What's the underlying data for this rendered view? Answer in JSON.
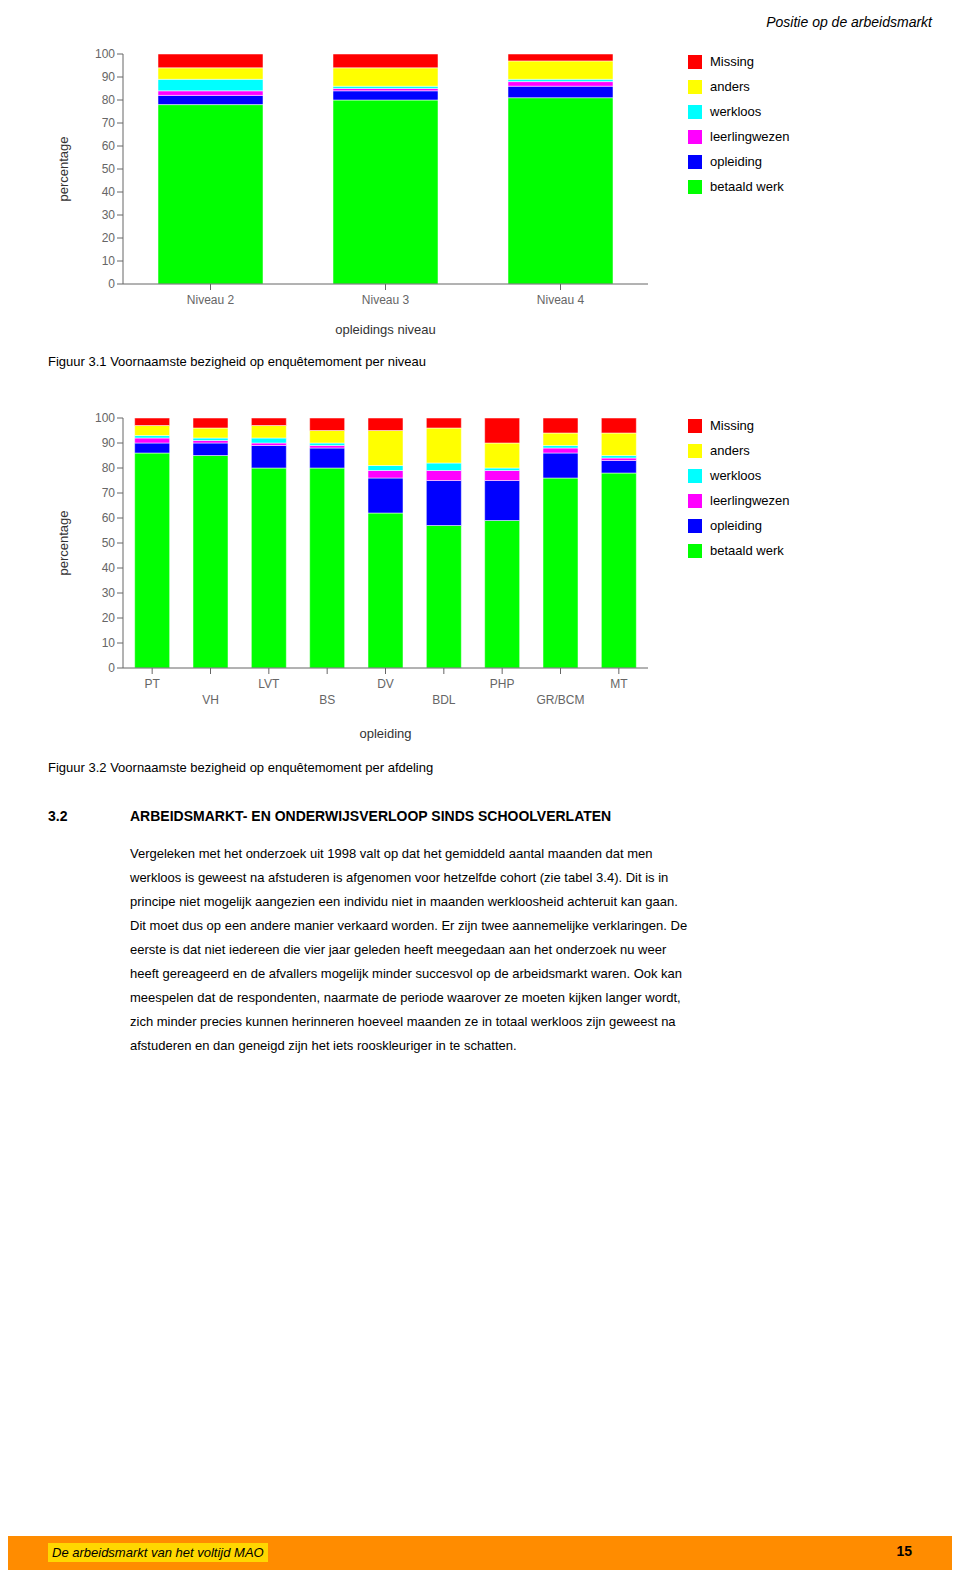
{
  "page_title": "Positie op de arbeidsmarkt",
  "section_number": "3.2",
  "section_title": "ARBEIDSMARKT- EN ONDERWIJSVERLOOP SINDS SCHOOLVERLATEN",
  "body_lines": [
    "Vergeleken met het onderzoek uit 1998 valt op dat het gemiddeld aantal maanden dat men",
    "werkloos is geweest na afstuderen is afgenomen voor hetzelfde cohort (zie tabel 3.4). Dit is in",
    "principe niet mogelijk aangezien een individu niet in maanden werkloosheid achteruit kan gaan.",
    "Dit moet dus op een andere manier verkaard worden. Er zijn twee aannemelijke verklaringen. De",
    "eerste is dat niet iedereen die vier jaar geleden heeft meegedaan aan het onderzoek nu weer",
    "heeft gereageerd en de afvallers mogelijk minder succesvol op de arbeidsmarkt waren. Ook kan",
    "meespelen dat de respondenten, naarmate de periode waarover ze moeten kijken langer wordt,",
    "zich minder precies kunnen herinneren hoeveel maanden ze in totaal werkloos zijn geweest na",
    "afstuderen en dan geneigd zijn het iets rooskleuriger in te schatten."
  ],
  "footer_text": "De arbeidsmarkt van het voltijd MAO",
  "page_number": "15",
  "footer_color": "#FF8C00",
  "footer_highlight": "#FFD700",
  "chart_data": [
    {
      "type": "bar",
      "stacked": true,
      "title": "Figuur 3.1   Voornaamste bezigheid op enquêtemoment per niveau",
      "xlabel": "opleidings niveau",
      "ylabel": "percentage",
      "categories": [
        "Niveau 2",
        "Niveau 3",
        "Niveau 4"
      ],
      "series": [
        {
          "name": "Missing",
          "color": "#FF0000",
          "values": [
            6,
            6,
            3
          ]
        },
        {
          "name": "anders",
          "color": "#FFFF00",
          "values": [
            5,
            8,
            8
          ]
        },
        {
          "name": "werkloos",
          "color": "#00FFFF",
          "values": [
            5,
            1,
            1
          ]
        },
        {
          "name": "leerlingwezen",
          "color": "#FF00FF",
          "values": [
            2,
            1,
            2
          ]
        },
        {
          "name": "opleiding",
          "color": "#0000FF",
          "values": [
            4,
            4,
            5
          ]
        },
        {
          "name": "betaald werk",
          "color": "#00FF00",
          "values": [
            78,
            80,
            81
          ]
        }
      ],
      "ylim": [
        0,
        100
      ],
      "yticks": [
        0,
        10,
        20,
        30,
        40,
        50,
        60,
        70,
        80,
        90,
        100
      ],
      "grid": false,
      "legend": "right"
    },
    {
      "type": "bar",
      "stacked": true,
      "title": "Figuur 3.2   Voornaamste bezigheid op enquêtemoment per afdeling",
      "xlabel": "opleiding",
      "ylabel": "percentage",
      "categories": [
        "PT",
        "VH",
        "LVT",
        "BS",
        "DV",
        "BDL",
        "PHP",
        "GR/BCM",
        "MT"
      ],
      "series": [
        {
          "name": "Missing",
          "color": "#FF0000",
          "values": [
            3,
            4,
            3,
            5,
            5,
            4,
            10,
            6,
            6
          ]
        },
        {
          "name": "anders",
          "color": "#FFFF00",
          "values": [
            4,
            4,
            5,
            5,
            14,
            14,
            10,
            5,
            9
          ]
        },
        {
          "name": "werkloos",
          "color": "#00FFFF",
          "values": [
            1,
            1,
            2,
            1,
            2,
            3,
            1,
            1,
            1
          ]
        },
        {
          "name": "leerlingwezen",
          "color": "#FF00FF",
          "values": [
            2,
            1,
            1,
            1,
            3,
            4,
            4,
            2,
            1
          ]
        },
        {
          "name": "opleiding",
          "color": "#0000FF",
          "values": [
            4,
            5,
            9,
            8,
            14,
            18,
            16,
            10,
            5
          ]
        },
        {
          "name": "betaald werk",
          "color": "#00FF00",
          "values": [
            86,
            85,
            80,
            80,
            62,
            57,
            59,
            76,
            78
          ]
        }
      ],
      "ylim": [
        0,
        100
      ],
      "yticks": [
        0,
        10,
        20,
        30,
        40,
        50,
        60,
        70,
        80,
        90,
        100
      ],
      "grid": false,
      "legend": "right"
    }
  ]
}
